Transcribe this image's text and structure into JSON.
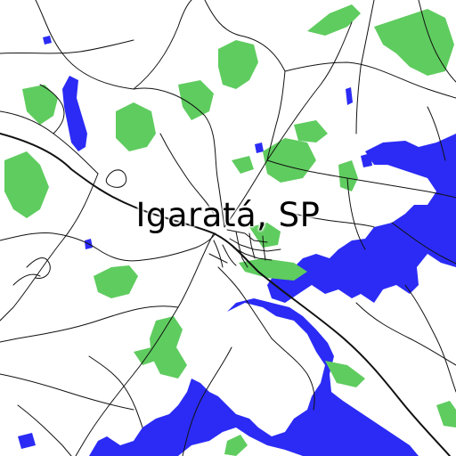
{
  "map": {
    "place_label": "Igaratá, SP",
    "colors": {
      "background": "#ffffff",
      "water": "#2b2bf5",
      "vegetation": "#5fcc5f",
      "roads": "#111111"
    },
    "layers": [
      "water",
      "vegetation",
      "roads",
      "place-label"
    ]
  }
}
